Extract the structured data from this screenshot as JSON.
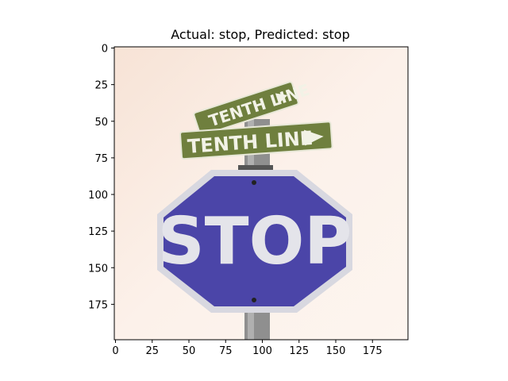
{
  "title": "Actual: stop, Predicted: stop",
  "image": {
    "description_labels": {
      "street_sign_upper": "TENTH LINE",
      "street_sign_lower": "TENTH LINE",
      "stop_sign": "STOP"
    }
  },
  "axes": {
    "x_ticks": [
      "0",
      "25",
      "50",
      "75",
      "100",
      "125",
      "150",
      "175"
    ],
    "y_ticks": [
      "0",
      "25",
      "50",
      "75",
      "100",
      "125",
      "150",
      "175"
    ],
    "x_range": [
      0,
      200
    ],
    "y_range": [
      0,
      200
    ],
    "y_inverted": true
  },
  "colors": {
    "stop_sign_blue": "#4b45a8",
    "street_sign_green": "#6f7f3e",
    "sky": "#fbefe6"
  }
}
